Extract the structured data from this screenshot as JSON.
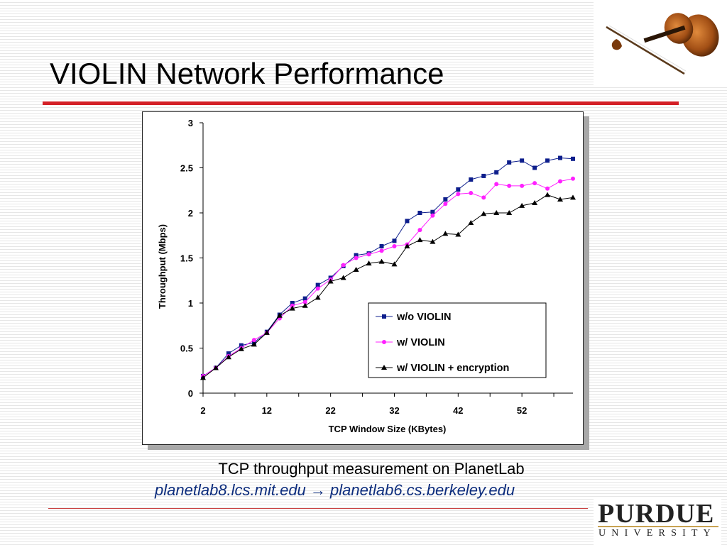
{
  "slide": {
    "title": "VIOLIN Network Performance",
    "caption": "TCP throughput measurement on PlanetLab",
    "route": "planetlab8.lcs.mit.edu → planetlab6.cs.berkeley.edu",
    "logo": {
      "name": "PURDUE",
      "sub": "UNIVERSITY"
    }
  },
  "colors": {
    "accent": "#d42027",
    "series_wo": "#0d1e8c",
    "series_w": "#ff21ff",
    "series_enc": "#000000"
  },
  "chart_data": {
    "type": "line",
    "title": "",
    "xlabel": "TCP Window Size (KBytes)",
    "ylabel": "Throughput (Mbps)",
    "xlim": [
      2,
      60
    ],
    "ylim": [
      0,
      3
    ],
    "x_ticks": [
      2,
      12,
      22,
      32,
      42,
      52
    ],
    "y_ticks": [
      0,
      0.5,
      1,
      1.5,
      2,
      2.5,
      3
    ],
    "legend_position": "bottom-right",
    "x": [
      2,
      4,
      6,
      8,
      10,
      12,
      14,
      16,
      18,
      20,
      22,
      24,
      26,
      28,
      30,
      32,
      34,
      36,
      38,
      40,
      42,
      44,
      46,
      48,
      50,
      52,
      54,
      56,
      58,
      60
    ],
    "series": [
      {
        "name": "w/o VIOLIN",
        "marker": "square",
        "values": [
          0.19,
          0.28,
          0.44,
          0.53,
          0.56,
          0.68,
          0.87,
          1.0,
          1.05,
          1.2,
          1.28,
          1.41,
          1.53,
          1.55,
          1.63,
          1.69,
          1.91,
          2.0,
          2.01,
          2.15,
          2.26,
          2.37,
          2.41,
          2.45,
          2.56,
          2.58,
          2.5,
          2.58,
          2.61,
          2.6
        ]
      },
      {
        "name": "w/ VIOLIN",
        "marker": "circle",
        "values": [
          0.19,
          0.28,
          0.41,
          0.5,
          0.59,
          0.67,
          0.83,
          0.97,
          1.01,
          1.16,
          1.26,
          1.42,
          1.5,
          1.54,
          1.58,
          1.63,
          1.65,
          1.81,
          1.97,
          2.1,
          2.21,
          2.22,
          2.17,
          2.32,
          2.3,
          2.3,
          2.33,
          2.27,
          2.35,
          2.38
        ]
      },
      {
        "name": "w/  VIOLIN + encryption",
        "marker": "triangle",
        "values": [
          0.17,
          0.28,
          0.4,
          0.49,
          0.54,
          0.67,
          0.86,
          0.94,
          0.97,
          1.06,
          1.24,
          1.28,
          1.37,
          1.44,
          1.46,
          1.43,
          1.63,
          1.7,
          1.68,
          1.77,
          1.76,
          1.89,
          1.99,
          2.0,
          2.0,
          2.08,
          2.11,
          2.2,
          2.15,
          2.17
        ]
      }
    ]
  }
}
